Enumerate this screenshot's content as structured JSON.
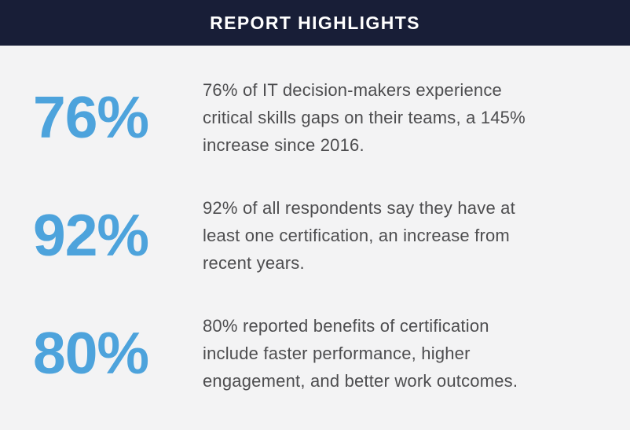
{
  "header": {
    "title": "REPORT HIGHLIGHTS"
  },
  "colors": {
    "header_bg": "#181E37",
    "header_text": "#FFFFFF",
    "page_bg": "#F3F3F4",
    "accent_blue": "#4DA3DC",
    "body_text": "#4D4D4F"
  },
  "stats": [
    {
      "value": "76%",
      "text": "76% of IT decision-makers experience critical skills gaps on their teams, a 145% increase since 2016.",
      "lines": [
        "76% of IT decision-makers experience",
        "critical skills gaps on their teams, a 145%",
        "increase since 2016."
      ]
    },
    {
      "value": "92%",
      "text": "92% of all respondents say they have at least one certification, an increase from recent years.",
      "lines": [
        "92% of all respondents say they have at",
        "least one certification, an increase from",
        "recent years."
      ]
    },
    {
      "value": "80%",
      "text": "80% reported benefits of certification include faster performance, higher engagement, and better work outcomes.",
      "lines": [
        "80% reported benefits of certification",
        "include faster performance, higher",
        "engagement, and better work outcomes."
      ]
    }
  ]
}
